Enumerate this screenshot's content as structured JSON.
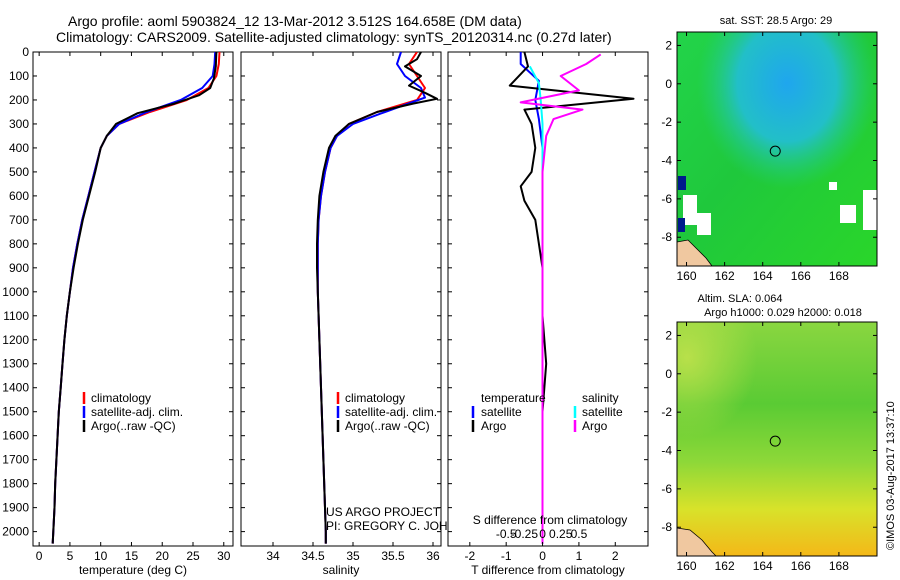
{
  "title": {
    "line1": "Argo profile: aoml 5903824_12 13-Mar-2012 3.512S 164.658E (DM data)",
    "line2": "Climatology: CARS2009. Satellite-adjusted climatology: synTS_20120314.nc (0.27d later)"
  },
  "credit": {
    "project": "US ARGO PROJECT",
    "pi": "PI: GREGORY C. JOHNSON"
  },
  "watermark": "©IMOS 03-Aug-2017 13:37:10",
  "colors": {
    "climatology": "#ff0000",
    "satellite": "#0000ff",
    "argo": "#000000",
    "salinity_satellite": "#00ffff",
    "salinity_argo": "#ff00ff"
  },
  "chart_data": [
    {
      "type": "line",
      "name": "temperature profile",
      "xlabel": "temperature (deg C)",
      "ylabel": "",
      "xlim": [
        -1,
        31.5
      ],
      "ylim": [
        2060,
        0
      ],
      "xticks": [
        0,
        5,
        10,
        15,
        20,
        25,
        30
      ],
      "yticks": [
        0,
        100,
        200,
        300,
        400,
        500,
        600,
        700,
        800,
        900,
        1000,
        1100,
        1200,
        1300,
        1400,
        1500,
        1600,
        1700,
        1800,
        1900,
        2000
      ],
      "legend": [
        "climatology",
        "satellite-adj. clim.",
        "Argo(..raw -QC)"
      ],
      "series": [
        {
          "name": "climatology",
          "color": "#ff0000",
          "points": [
            [
              29.3,
              0
            ],
            [
              29.2,
              50
            ],
            [
              28.8,
              100
            ],
            [
              27.5,
              150
            ],
            [
              24,
              200
            ],
            [
              18,
              250
            ],
            [
              13,
              300
            ],
            [
              11,
              350
            ],
            [
              10,
              400
            ],
            [
              9,
              500
            ],
            [
              8,
              600
            ],
            [
              7,
              700
            ],
            [
              6.2,
              800
            ],
            [
              5.5,
              900
            ],
            [
              5,
              1000
            ],
            [
              4.5,
              1100
            ],
            [
              4.1,
              1200
            ],
            [
              3.8,
              1300
            ],
            [
              3.5,
              1400
            ],
            [
              3.2,
              1500
            ],
            [
              3,
              1600
            ],
            [
              2.8,
              1700
            ],
            [
              2.6,
              1800
            ],
            [
              2.5,
              1900
            ],
            [
              2.3,
              2000
            ],
            [
              2.2,
              2050
            ]
          ]
        },
        {
          "name": "satellite-adj. clim.",
          "color": "#0000ff",
          "points": [
            [
              28.6,
              0
            ],
            [
              28.5,
              50
            ],
            [
              28.2,
              100
            ],
            [
              26.5,
              150
            ],
            [
              23,
              200
            ],
            [
              17.5,
              250
            ],
            [
              13,
              300
            ],
            [
              11,
              350
            ],
            [
              10,
              400
            ],
            [
              9,
              500
            ],
            [
              8,
              600
            ],
            [
              7,
              700
            ],
            [
              6.2,
              800
            ],
            [
              5.5,
              900
            ],
            [
              5,
              1000
            ],
            [
              4.5,
              1100
            ],
            [
              4.1,
              1200
            ],
            [
              3.8,
              1300
            ],
            [
              3.5,
              1400
            ],
            [
              3.2,
              1500
            ],
            [
              3,
              1600
            ],
            [
              2.8,
              1700
            ],
            [
              2.6,
              1800
            ],
            [
              2.5,
              1900
            ],
            [
              2.3,
              2000
            ],
            [
              2.2,
              2050
            ]
          ]
        },
        {
          "name": "Argo(..raw -QC)",
          "color": "#000000",
          "points": [
            [
              28.8,
              0
            ],
            [
              28.7,
              60
            ],
            [
              28.4,
              110
            ],
            [
              27.8,
              150
            ],
            [
              26,
              180
            ],
            [
              22,
              215
            ],
            [
              16,
              255
            ],
            [
              12.5,
              300
            ],
            [
              11,
              350
            ],
            [
              10,
              400
            ],
            [
              9.1,
              500
            ],
            [
              8.1,
              600
            ],
            [
              7.1,
              700
            ],
            [
              6.3,
              800
            ],
            [
              5.6,
              900
            ],
            [
              5,
              1000
            ],
            [
              4.5,
              1100
            ],
            [
              4.1,
              1200
            ],
            [
              3.8,
              1300
            ],
            [
              3.5,
              1400
            ],
            [
              3.2,
              1500
            ],
            [
              3,
              1600
            ],
            [
              2.8,
              1700
            ],
            [
              2.6,
              1800
            ],
            [
              2.5,
              1900
            ],
            [
              2.3,
              2000
            ],
            [
              2.2,
              2050
            ]
          ]
        }
      ]
    },
    {
      "type": "line",
      "name": "salinity profile",
      "xlabel": "salinity",
      "ylabel": "",
      "xlim": [
        33.6,
        36.1
      ],
      "ylim": [
        2060,
        0
      ],
      "xticks": [
        34,
        34.5,
        35,
        35.5,
        36
      ],
      "xticklabels": [
        "34",
        "34.5",
        "35",
        "35.5",
        "36"
      ],
      "legend": [
        "climatology",
        "satellite-adj. clim.",
        "Argo(..raw -QC)"
      ],
      "series": [
        {
          "name": "climatology",
          "color": "#ff0000",
          "points": [
            [
              35.8,
              0
            ],
            [
              35.7,
              50
            ],
            [
              35.8,
              100
            ],
            [
              35.9,
              150
            ],
            [
              35.8,
              200
            ],
            [
              35.3,
              250
            ],
            [
              34.95,
              300
            ],
            [
              34.8,
              350
            ],
            [
              34.72,
              400
            ],
            [
              34.65,
              500
            ],
            [
              34.6,
              600
            ],
            [
              34.57,
              700
            ],
            [
              34.56,
              800
            ],
            [
              34.56,
              900
            ],
            [
              34.56,
              1000
            ],
            [
              34.57,
              1100
            ],
            [
              34.58,
              1200
            ],
            [
              34.59,
              1300
            ],
            [
              34.6,
              1400
            ],
            [
              34.61,
              1500
            ],
            [
              34.62,
              1600
            ],
            [
              34.63,
              1700
            ],
            [
              34.64,
              1800
            ],
            [
              34.65,
              1900
            ],
            [
              34.66,
              2000
            ],
            [
              34.66,
              2050
            ]
          ]
        },
        {
          "name": "satellite-adj. clim.",
          "color": "#0000ff",
          "points": [
            [
              35.6,
              0
            ],
            [
              35.55,
              50
            ],
            [
              35.65,
              100
            ],
            [
              35.85,
              150
            ],
            [
              35.9,
              190
            ],
            [
              35.4,
              250
            ],
            [
              35.0,
              300
            ],
            [
              34.8,
              350
            ],
            [
              34.72,
              400
            ],
            [
              34.65,
              500
            ],
            [
              34.6,
              600
            ],
            [
              34.57,
              700
            ],
            [
              34.56,
              800
            ],
            [
              34.56,
              900
            ],
            [
              34.56,
              1000
            ],
            [
              34.57,
              1100
            ],
            [
              34.58,
              1200
            ],
            [
              34.59,
              1300
            ],
            [
              34.6,
              1400
            ],
            [
              34.61,
              1500
            ],
            [
              34.62,
              1600
            ],
            [
              34.63,
              1700
            ],
            [
              34.64,
              1800
            ],
            [
              34.65,
              1900
            ],
            [
              34.66,
              2000
            ],
            [
              34.66,
              2050
            ]
          ]
        },
        {
          "name": "Argo(..raw -QC)",
          "color": "#000000",
          "points": [
            [
              35.85,
              0
            ],
            [
              35.8,
              30
            ],
            [
              35.65,
              60
            ],
            [
              35.85,
              100
            ],
            [
              35.7,
              140
            ],
            [
              35.9,
              170
            ],
            [
              36.05,
              195
            ],
            [
              35.75,
              215
            ],
            [
              35.3,
              250
            ],
            [
              34.95,
              300
            ],
            [
              34.78,
              350
            ],
            [
              34.7,
              400
            ],
            [
              34.63,
              500
            ],
            [
              34.58,
              600
            ],
            [
              34.56,
              700
            ],
            [
              34.55,
              800
            ],
            [
              34.55,
              900
            ],
            [
              34.56,
              1000
            ],
            [
              34.57,
              1100
            ],
            [
              34.58,
              1200
            ],
            [
              34.59,
              1300
            ],
            [
              34.6,
              1400
            ],
            [
              34.61,
              1500
            ],
            [
              34.62,
              1600
            ],
            [
              34.63,
              1700
            ],
            [
              34.64,
              1800
            ],
            [
              34.65,
              1900
            ],
            [
              34.66,
              2000
            ],
            [
              34.66,
              2050
            ]
          ]
        }
      ]
    },
    {
      "type": "line",
      "name": "difference from climatology",
      "xlabel": "T difference from climatology",
      "xlabel_top": "S difference from climatology",
      "xlim": [
        -2.6,
        2.9
      ],
      "ylim": [
        2060,
        0
      ],
      "xticks": [
        -2,
        -1,
        0,
        1,
        2
      ],
      "s_xticks": [
        -0.5,
        -0.25,
        0,
        0.25,
        0.5
      ],
      "s_xticklabels": [
        "-0.5",
        "-0.25",
        "0",
        "0.25",
        "0.5"
      ],
      "legend": {
        "temperature_title": "temperature",
        "salinity_title": "salinity",
        "temperature_entries": [
          "satellite",
          "Argo"
        ],
        "salinity_entries": [
          "satellite",
          "Argo"
        ]
      },
      "series": [
        {
          "name": "temperature satellite",
          "color": "#0000ff",
          "points": [
            [
              -0.6,
              0
            ],
            [
              -0.6,
              50
            ],
            [
              -0.1,
              120
            ],
            [
              -0.2,
              200
            ],
            [
              -0.1,
              280
            ],
            [
              0,
              400
            ],
            [
              0,
              600
            ],
            [
              0,
              800
            ],
            [
              0,
              1000
            ],
            [
              0,
              1500
            ],
            [
              0,
              2050
            ]
          ]
        },
        {
          "name": "temperature Argo",
          "color": "#000000",
          "points": [
            [
              -0.5,
              0
            ],
            [
              -0.4,
              60
            ],
            [
              -0.9,
              140
            ],
            [
              2.5,
              195
            ],
            [
              -0.5,
              240
            ],
            [
              -0.3,
              300
            ],
            [
              -0.2,
              400
            ],
            [
              -0.3,
              500
            ],
            [
              -0.6,
              560
            ],
            [
              -0.5,
              620
            ],
            [
              -0.2,
              700
            ],
            [
              0,
              900
            ],
            [
              0,
              1100
            ],
            [
              0.1,
              1300
            ],
            [
              0,
              1500
            ],
            [
              0,
              1800
            ],
            [
              0,
              2050
            ]
          ]
        },
        {
          "name": "salinity satellite",
          "color": "#00ffff",
          "points": [
            [
              -0.35,
              60
            ],
            [
              -0.1,
              130
            ],
            [
              -0.05,
              200
            ],
            [
              0,
              300
            ],
            [
              0,
              600
            ],
            [
              0,
              1000
            ],
            [
              0,
              1500
            ],
            [
              0,
              2050
            ]
          ]
        },
        {
          "name": "salinity Argo",
          "color": "#ff00ff",
          "points": [
            [
              1.6,
              10
            ],
            [
              1.2,
              50
            ],
            [
              0.5,
              100
            ],
            [
              1.0,
              160
            ],
            [
              -0.6,
              210
            ],
            [
              1.1,
              240
            ],
            [
              0.3,
              280
            ],
            [
              0.1,
              350
            ],
            [
              0,
              500
            ],
            [
              0,
              1000
            ],
            [
              0,
              1500
            ],
            [
              0,
              2050
            ]
          ]
        }
      ]
    },
    {
      "type": "heatmap",
      "name": "satellite SST map",
      "title": "sat. SST: 28.5 Argo: 29",
      "xlim": [
        159.5,
        170
      ],
      "ylim": [
        -9.5,
        2.7
      ],
      "xticks": [
        160,
        162,
        164,
        166,
        168
      ],
      "yticks": [
        2,
        0,
        -2,
        -4,
        -6,
        -8
      ],
      "marker": {
        "lon": 164.658,
        "lat": -3.512
      }
    },
    {
      "type": "heatmap",
      "name": "sea level anomaly map",
      "title": "Altim. SLA: 0.064",
      "subtitle": "Argo h1000: 0.029 h2000: 0.018",
      "xlim": [
        159.5,
        170
      ],
      "ylim": [
        -9.5,
        2.7
      ],
      "xticks": [
        160,
        162,
        164,
        166,
        168
      ],
      "yticks": [
        2,
        0,
        -2,
        -4,
        -6,
        -8
      ],
      "marker": {
        "lon": 164.658,
        "lat": -3.512
      }
    }
  ]
}
